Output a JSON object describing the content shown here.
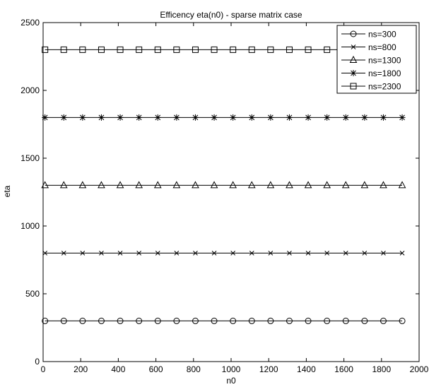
{
  "chart_data": {
    "type": "line",
    "title": "Efficency eta(n0) - sparse matrix case",
    "xlabel": "n0",
    "ylabel": "eta",
    "xlim": [
      0,
      2000
    ],
    "ylim": [
      0,
      2500
    ],
    "x_ticks": [
      0,
      200,
      400,
      600,
      800,
      1000,
      1200,
      1400,
      1600,
      1800,
      2000
    ],
    "y_ticks": [
      0,
      500,
      1000,
      1500,
      2000,
      2500
    ],
    "x": [
      10,
      110,
      210,
      310,
      410,
      510,
      610,
      710,
      810,
      910,
      1010,
      1110,
      1210,
      1310,
      1410,
      1510,
      1610,
      1710,
      1810,
      1910
    ],
    "grid": false,
    "legend_position": "top-right",
    "series": [
      {
        "name": "ns=300",
        "marker": "circle",
        "values": [
          300,
          300,
          300,
          300,
          300,
          300,
          300,
          300,
          300,
          300,
          300,
          300,
          300,
          300,
          300,
          300,
          300,
          300,
          300,
          300
        ]
      },
      {
        "name": "ns=800",
        "marker": "x",
        "values": [
          800,
          800,
          800,
          800,
          800,
          800,
          800,
          800,
          800,
          800,
          800,
          800,
          800,
          800,
          800,
          800,
          800,
          800,
          800,
          800
        ]
      },
      {
        "name": "ns=1300",
        "marker": "triangle",
        "values": [
          1300,
          1300,
          1300,
          1300,
          1300,
          1300,
          1300,
          1300,
          1300,
          1300,
          1300,
          1300,
          1300,
          1300,
          1300,
          1300,
          1300,
          1300,
          1300,
          1300
        ]
      },
      {
        "name": "ns=1800",
        "marker": "star",
        "values": [
          1800,
          1800,
          1800,
          1800,
          1800,
          1800,
          1800,
          1800,
          1800,
          1800,
          1800,
          1800,
          1800,
          1800,
          1800,
          1800,
          1800,
          1800,
          1800,
          1800
        ]
      },
      {
        "name": "ns=2300",
        "marker": "square",
        "values": [
          2300,
          2300,
          2300,
          2300,
          2300,
          2300,
          2300,
          2300,
          2300,
          2300,
          2300,
          2300,
          2300,
          2300,
          2300,
          2300,
          2300,
          2300,
          2300,
          2300
        ]
      }
    ],
    "colors": {
      "line": "#000000",
      "background": "#ffffff"
    }
  }
}
